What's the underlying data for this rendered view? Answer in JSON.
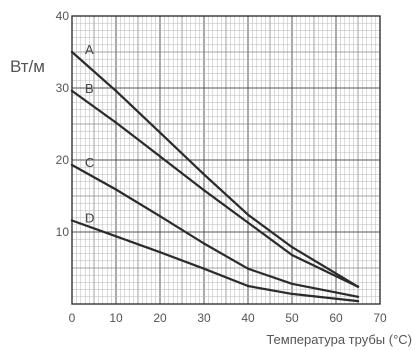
{
  "chart_data": {
    "type": "line",
    "title": "",
    "ylabel": "Вт/м",
    "xlabel": "Температура трубы (°C)",
    "xlim": [
      0,
      70
    ],
    "ylim": [
      0,
      40
    ],
    "x_ticks": [
      "0",
      "10",
      "20",
      "30",
      "40",
      "50",
      "60",
      "70"
    ],
    "y_ticks": [
      "10",
      "20",
      "30",
      "40"
    ],
    "grid": true,
    "series": [
      {
        "name": "A",
        "points": [
          [
            0,
            35
          ],
          [
            10,
            29.6
          ],
          [
            20,
            23.8
          ],
          [
            30,
            18
          ],
          [
            40,
            12.4
          ],
          [
            50,
            7.9
          ],
          [
            65,
            2.4
          ]
        ]
      },
      {
        "name": "B",
        "points": [
          [
            0,
            29.6
          ],
          [
            10,
            25.2
          ],
          [
            20,
            20.5
          ],
          [
            30,
            15.8
          ],
          [
            40,
            11.3
          ],
          [
            50,
            6.8
          ],
          [
            65,
            2.4
          ]
        ]
      },
      {
        "name": "C",
        "points": [
          [
            0,
            19.3
          ],
          [
            10,
            15.9
          ],
          [
            20,
            12.2
          ],
          [
            30,
            8.4
          ],
          [
            40,
            4.9
          ],
          [
            50,
            2.8
          ],
          [
            65,
            1.0
          ]
        ]
      },
      {
        "name": "D",
        "points": [
          [
            0,
            11.6
          ],
          [
            10,
            9.4
          ],
          [
            20,
            7.2
          ],
          [
            30,
            4.9
          ],
          [
            40,
            2.5
          ],
          [
            50,
            1.4
          ],
          [
            65,
            0.4
          ]
        ]
      }
    ]
  }
}
